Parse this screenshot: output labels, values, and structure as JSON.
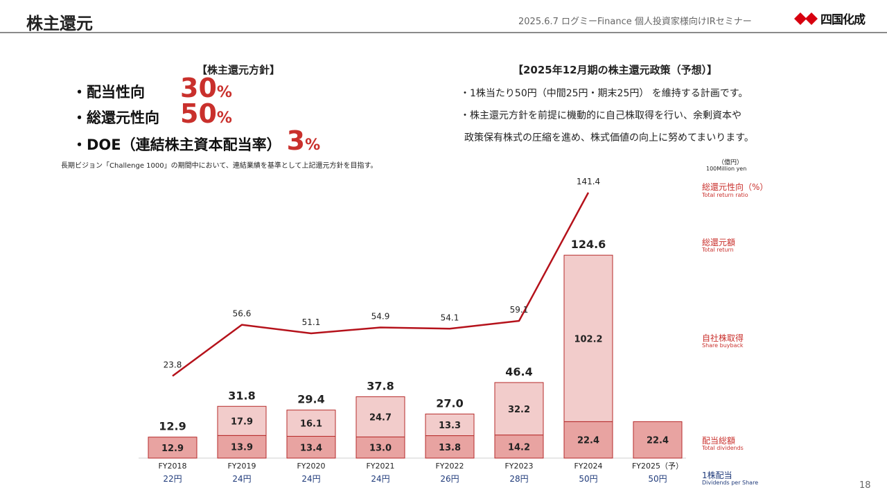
{
  "header": {
    "title": "株主還元",
    "event": "2025.6.7 ログミーFinance 個人投資家様向けIRセミナー",
    "logo_text": "四国化成"
  },
  "policy": {
    "heading": "【株主還元方針】",
    "items": [
      {
        "label": "・配当性向",
        "value": "30",
        "unit": "%"
      },
      {
        "label": "・総還元性向",
        "value": "50",
        "unit": "%"
      },
      {
        "label": "・DOE（連結株主資本配当率）",
        "value": "3",
        "unit": "%"
      }
    ],
    "note": "長期ビジョン「Challenge 1000」の期間中において、連結業績を基準として上記還元方針を目指す。"
  },
  "forecast": {
    "heading": "【2025年12月期の株主還元政策（予想）】",
    "lines": [
      "・1株当たり50円（中間25円・期末25円） を維持する計画です。",
      "・株主還元方針を前提に機動的に自己株取得を行い、余剰資本や",
      "政策保有株式の圧縮を進め、株式価値の向上に努めてまいります。"
    ]
  },
  "legend": {
    "unit_jp": "（億円）",
    "unit_en": "100Million yen",
    "total_return_ratio_jp": "総還元性向（%）",
    "total_return_ratio_en": "Total return ratio",
    "total_return_jp": "総還元額",
    "total_return_en": "Total return",
    "buyback_jp": "自社株取得",
    "buyback_en": "Share buyback",
    "dividends_jp": "配当総額",
    "dividends_en": "Total dividends",
    "dps_jp": "1株配当",
    "dps_en": "Dividends per Share"
  },
  "colors": {
    "accent_red": "#c9302c",
    "dividend_fill": "#e8a3a1",
    "buyback_fill": "#f2cccb",
    "bar_edge": "#b52a2a",
    "line": "#b5121b",
    "navy": "#1f3a7a"
  },
  "chart_data": {
    "type": "bar",
    "stacked": true,
    "categories": [
      "FY2018",
      "FY2019",
      "FY2020",
      "FY2021",
      "FY2022",
      "FY2023",
      "FY2024",
      "FY2025（予）"
    ],
    "series": [
      {
        "name": "配当総額",
        "values": [
          12.9,
          13.9,
          13.4,
          13.0,
          13.8,
          14.2,
          22.4,
          22.4
        ]
      },
      {
        "name": "自社株取得",
        "values": [
          null,
          17.9,
          16.1,
          24.7,
          13.3,
          32.2,
          102.2,
          null
        ]
      }
    ],
    "totals": [
      12.9,
      31.8,
      29.4,
      37.8,
      27.0,
      46.4,
      124.6,
      null
    ],
    "line_series": {
      "name": "総還元性向（%）",
      "values": [
        23.8,
        56.6,
        51.1,
        54.9,
        54.1,
        59.1,
        141.4,
        null
      ]
    },
    "dividends_per_share": [
      "22円",
      "24円",
      "24円",
      "24円",
      "26円",
      "28円",
      "50円",
      "50円"
    ],
    "page_number": "18"
  }
}
